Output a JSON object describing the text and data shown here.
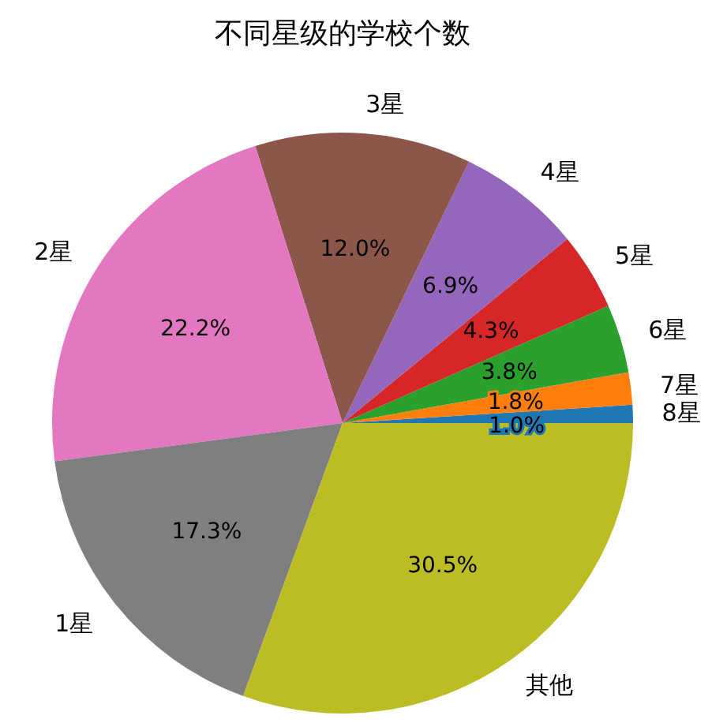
{
  "chart_data": {
    "type": "pie",
    "title": "不同星级的学校个数",
    "categories": [
      "8星",
      "7星",
      "6星",
      "5星",
      "4星",
      "3星",
      "2星",
      "1星",
      "其他"
    ],
    "values": [
      1.0,
      1.8,
      3.8,
      4.3,
      6.9,
      12.0,
      22.2,
      17.3,
      30.5
    ],
    "value_labels": [
      "1.0%",
      "1.8%",
      "3.8%",
      "4.3%",
      "6.9%",
      "12.0%",
      "22.2%",
      "17.3%",
      "30.5%"
    ],
    "colors": [
      "#1f77b4",
      "#ff7f0e",
      "#2ca02c",
      "#d62728",
      "#9467bd",
      "#8c564b",
      "#e377c2",
      "#7f7f7f",
      "#bcbd22"
    ]
  }
}
